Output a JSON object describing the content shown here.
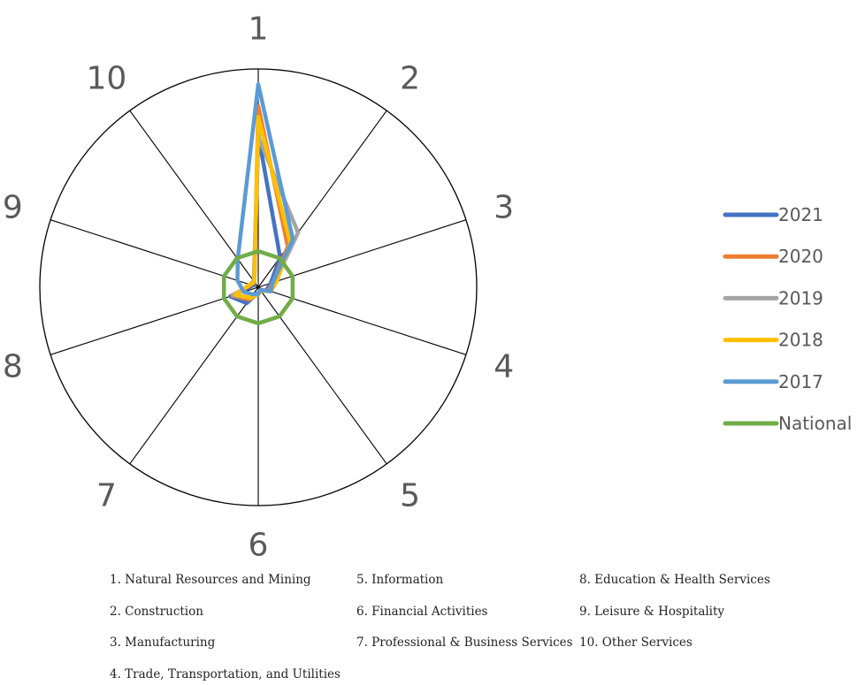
{
  "chart_data": {
    "type": "radar",
    "title": "",
    "categories": [
      "1",
      "2",
      "3",
      "4",
      "5",
      "6",
      "7",
      "8",
      "9",
      "10"
    ],
    "rmax": 10,
    "grid": false,
    "legend_position": "right",
    "series": [
      {
        "name": "2021",
        "color": "#4472C4",
        "values": [
          7.0,
          1.7,
          0.6,
          0.4,
          0.2,
          0.25,
          0.9,
          1.35,
          0.25,
          0.3
        ]
      },
      {
        "name": "2020",
        "color": "#ED7D31",
        "values": [
          8.3,
          2.3,
          0.7,
          0.5,
          0.15,
          0.3,
          0.7,
          1.25,
          0.35,
          0.3
        ]
      },
      {
        "name": "2019",
        "color": "#A5A5A5",
        "values": [
          6.9,
          3.1,
          0.8,
          0.55,
          0.15,
          0.35,
          0.6,
          1.2,
          0.4,
          0.35
        ]
      },
      {
        "name": "2018",
        "color": "#FFC000",
        "values": [
          7.8,
          2.5,
          0.9,
          0.6,
          0.2,
          0.3,
          0.6,
          1.1,
          0.4,
          0.3
        ]
      },
      {
        "name": "2017",
        "color": "#5B9BD5",
        "values": [
          9.3,
          2.7,
          0.7,
          0.6,
          0.15,
          0.3,
          0.4,
          0.7,
          1.0,
          1.6
        ]
      },
      {
        "name": "National",
        "color": "#70AD47",
        "values": [
          1.65,
          1.65,
          1.65,
          1.65,
          1.65,
          1.65,
          1.65,
          1.65,
          1.65,
          1.65
        ]
      }
    ]
  },
  "footnotes": [
    "1. Natural Resources and Mining",
    "2. Construction",
    "3. Manufacturing",
    "4. Trade, Transportation, and Utilities",
    "5. Information",
    "6. Financial Activities",
    "7. Professional & Business Services",
    "8. Education & Health Services",
    "9. Leisure & Hospitality",
    "10. Other Services"
  ]
}
